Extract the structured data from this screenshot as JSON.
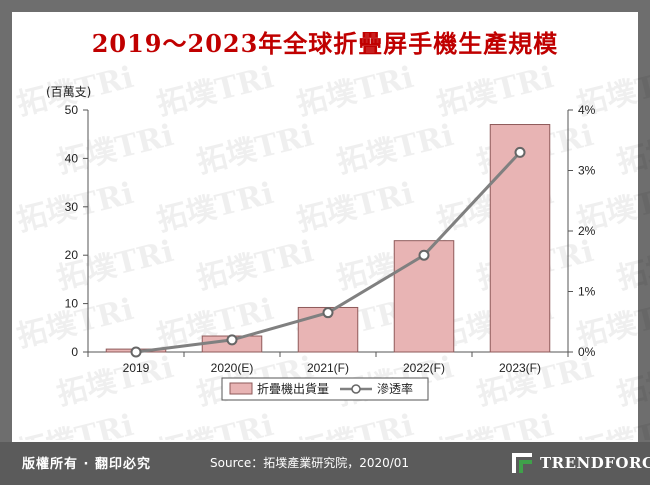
{
  "title": "2019～2023年全球折疊屏手機生產規模",
  "footer": {
    "copyright": "版權所有 · 翻印必究",
    "source": "Source：拓墣產業研究院，2020/01",
    "brand": "TRENDFORCE"
  },
  "watermark_text": "拓墣TRi",
  "chart_data": {
    "type": "bar",
    "categories": [
      "2019",
      "2020(E)",
      "2021(F)",
      "2022(F)",
      "2023(F)"
    ],
    "series": [
      {
        "name": "折疊機出貨量",
        "type": "bar",
        "axis": "left",
        "values": [
          0.6,
          3.3,
          9.2,
          23,
          47
        ],
        "color": "#e8b4b4",
        "stroke": "#8e5a5a"
      },
      {
        "name": "滲透率",
        "type": "line",
        "axis": "right",
        "values": [
          0.0,
          0.2,
          0.65,
          1.6,
          3.3
        ],
        "color": "#808080"
      }
    ],
    "ylabel": "(百萬支)",
    "ylim": [
      0,
      50
    ],
    "yticks": [
      0,
      10,
      20,
      30,
      40,
      50
    ],
    "y2lim": [
      0,
      4
    ],
    "y2ticks": [
      "0%",
      "1%",
      "2%",
      "3%",
      "4%"
    ],
    "y2values": [
      0,
      1,
      2,
      3,
      4
    ],
    "grid": false,
    "legend": "bottom"
  }
}
